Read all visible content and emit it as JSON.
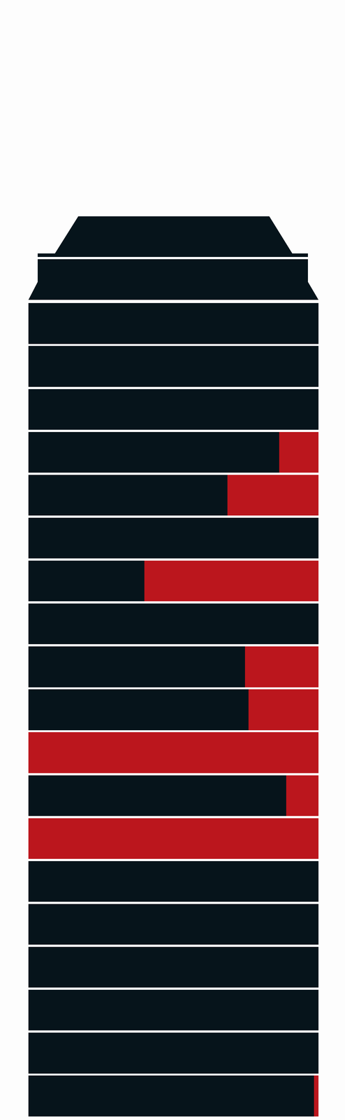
{
  "chart_data": {
    "type": "bar",
    "orientation": "horizontal",
    "stacked": true,
    "categories": [
      null,
      null,
      null,
      null,
      null,
      null,
      null,
      null,
      null,
      null,
      null,
      null,
      null,
      null,
      null,
      null,
      null,
      null,
      null
    ],
    "series": [
      {
        "color": "#06141b",
        "values": [
          100,
          100,
          100,
          86.5,
          68.6,
          100,
          40,
          100,
          74.7,
          75.9,
          0,
          88.9,
          0,
          100,
          100,
          100,
          100,
          100,
          98.5
        ]
      },
      {
        "color": "#bb161d",
        "values": [
          0,
          0,
          0,
          13.5,
          31.4,
          0,
          60,
          0,
          25.3,
          24.1,
          100,
          11.1,
          100,
          0,
          0,
          0,
          0,
          0,
          1.5
        ]
      }
    ],
    "xlim": [
      0,
      100
    ],
    "grid": false,
    "tick_labels": false
  }
}
